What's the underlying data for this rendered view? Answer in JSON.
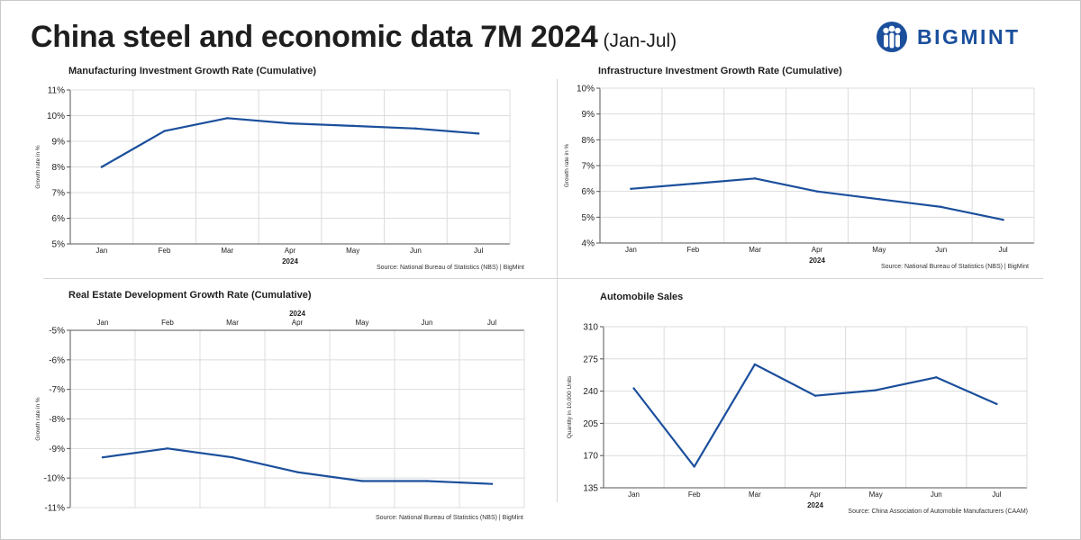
{
  "header": {
    "title": "China steel and economic data 7M 2024",
    "subtitle": "(Jan-Jul)",
    "brand": "BIGMINT"
  },
  "colors": {
    "line": "#1b4f9c",
    "brand": "#1b4f9c",
    "grid": "#dcdcdc",
    "axis": "#555555"
  },
  "chart_data": [
    {
      "id": "manufacturing",
      "type": "line",
      "title": "Manufacturing Investment Growth Rate (Cumulative)",
      "categories": [
        "Jan",
        "Feb",
        "Mar",
        "Apr",
        "May",
        "Jun",
        "Jul"
      ],
      "values": [
        8.0,
        9.4,
        9.9,
        9.7,
        9.6,
        9.5,
        9.3
      ],
      "xlabel": "2024",
      "ylabel": "Growth rate in %",
      "ylim": [
        5,
        11
      ],
      "yticks": [
        "5%",
        "6%",
        "7%",
        "8%",
        "9%",
        "10%",
        "11%"
      ],
      "xaxis_position": "bottom",
      "source": "Source: National Bureau of Statistics (NBS) | BigMint"
    },
    {
      "id": "infrastructure",
      "type": "line",
      "title": "Infrastructure Investment Growth Rate (Cumulative)",
      "categories": [
        "Jan",
        "Feb",
        "Mar",
        "Apr",
        "May",
        "Jun",
        "Jul"
      ],
      "values": [
        6.1,
        6.3,
        6.5,
        6.0,
        5.7,
        5.4,
        4.9
      ],
      "xlabel": "2024",
      "ylabel": "Growth rate in %",
      "ylim": [
        4,
        10
      ],
      "yticks": [
        "4%",
        "5%",
        "6%",
        "7%",
        "8%",
        "9%",
        "10%"
      ],
      "xaxis_position": "bottom",
      "source": "Source: National Bureau of Statistics (NBS) | BigMint"
    },
    {
      "id": "realestate",
      "type": "line",
      "title": "Real Estate Development Growth Rate (Cumulative)",
      "categories": [
        "Jan",
        "Feb",
        "Mar",
        "Apr",
        "May",
        "Jun",
        "Jul"
      ],
      "values": [
        -9.3,
        -9.0,
        -9.3,
        -9.8,
        -10.1,
        -10.1,
        -10.2
      ],
      "xlabel": "2024",
      "ylabel": "Growth rate in %",
      "ylim": [
        -11,
        -5
      ],
      "yticks": [
        "-11%",
        "-10%",
        "-9%",
        "-8%",
        "-7%",
        "-6%",
        "-5%"
      ],
      "xaxis_position": "top",
      "source": "Source: National Bureau of Statistics (NBS) | BigMint"
    },
    {
      "id": "automobile",
      "type": "line",
      "title": "Automobile Sales",
      "categories": [
        "Jan",
        "Feb",
        "Mar",
        "Apr",
        "May",
        "Jun",
        "Jul"
      ],
      "values": [
        243,
        158,
        269,
        235,
        241,
        255,
        226
      ],
      "xlabel": "2024",
      "ylabel": "Quantity in 10,000 Units",
      "ylim": [
        135,
        310
      ],
      "yticks": [
        "135",
        "170",
        "205",
        "240",
        "275",
        "310"
      ],
      "xaxis_position": "bottom",
      "source": "Source: China Association of Automobile Manufacturers (CAAM)"
    }
  ]
}
